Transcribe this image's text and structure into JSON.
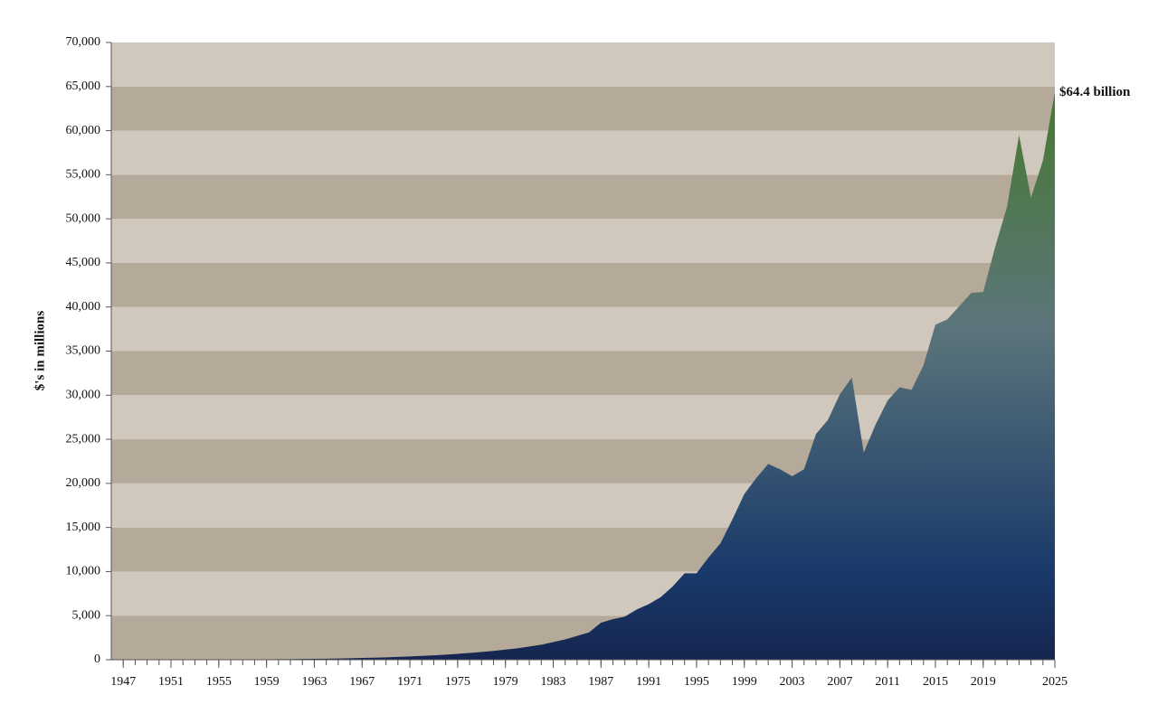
{
  "chart_data": {
    "type": "area",
    "y_label": "$'s in millions",
    "annotation": "$64.4 billion",
    "x": [
      1947,
      1948,
      1949,
      1950,
      1951,
      1952,
      1953,
      1954,
      1955,
      1956,
      1957,
      1958,
      1959,
      1960,
      1961,
      1962,
      1963,
      1964,
      1965,
      1966,
      1967,
      1968,
      1969,
      1970,
      1971,
      1972,
      1973,
      1974,
      1975,
      1976,
      1977,
      1978,
      1979,
      1980,
      1981,
      1982,
      1983,
      1984,
      1985,
      1986,
      1987,
      1988,
      1989,
      1990,
      1991,
      1992,
      1993,
      1994,
      1995,
      1996,
      1997,
      1998,
      1999,
      2000,
      2001,
      2002,
      2003,
      2004,
      2005,
      2006,
      2007,
      2008,
      2009,
      2010,
      2011,
      2012,
      2013,
      2014,
      2015,
      2016,
      2017,
      2018,
      2019,
      2020,
      2021,
      2022,
      2023,
      2024,
      2025
    ],
    "values": [
      8,
      10,
      12,
      15,
      17,
      20,
      22,
      25,
      30,
      35,
      40,
      45,
      50,
      60,
      70,
      85,
      100,
      120,
      140,
      170,
      200,
      230,
      270,
      320,
      370,
      430,
      500,
      580,
      670,
      770,
      880,
      1000,
      1150,
      1300,
      1500,
      1700,
      2000,
      2300,
      2700,
      3100,
      4200,
      4600,
      4900,
      5700,
      6300,
      7100,
      8300,
      9800,
      9800,
      11600,
      13200,
      15900,
      18800,
      20600,
      22200,
      21600,
      20800,
      21600,
      25600,
      27200,
      30100,
      32000,
      23500,
      26700,
      29400,
      30900,
      30600,
      33400,
      38000,
      38600,
      40100,
      41600,
      41700,
      46800,
      51400,
      59500,
      52400,
      56600,
      64400
    ],
    "xlim": [
      1946,
      2025
    ],
    "xticks": [
      1947,
      1951,
      1955,
      1959,
      1963,
      1967,
      1971,
      1975,
      1979,
      1983,
      1987,
      1991,
      1995,
      1999,
      2003,
      2007,
      2011,
      2015,
      2019,
      2025
    ],
    "ylim": [
      0,
      70000
    ],
    "yticks": [
      0,
      {
        "value": 5000,
        "label": "5,000"
      },
      {
        "value": 10000,
        "label": "10,000"
      },
      {
        "value": 15000,
        "label": "15,000"
      },
      {
        "value": 20000,
        "label": "20,000"
      },
      {
        "value": 25000,
        "label": "25,000"
      },
      {
        "value": 30000,
        "label": "30,000"
      },
      {
        "value": 35000,
        "label": "35,000"
      },
      {
        "value": 40000,
        "label": "40,000"
      },
      {
        "value": 45000,
        "label": "45,000"
      },
      {
        "value": 50000,
        "label": "50,000"
      },
      {
        "value": 55000,
        "label": "55,000"
      },
      {
        "value": 60000,
        "label": "60,000"
      },
      {
        "value": 65000,
        "label": "65,000"
      },
      {
        "value": 70000,
        "label": "70,000"
      }
    ],
    "band_colors": [
      "#b5a999",
      "#d0c8bd"
    ],
    "gradient_colors": [
      "#162650",
      "#193a6a",
      "#5c757b",
      "#46792d"
    ]
  }
}
